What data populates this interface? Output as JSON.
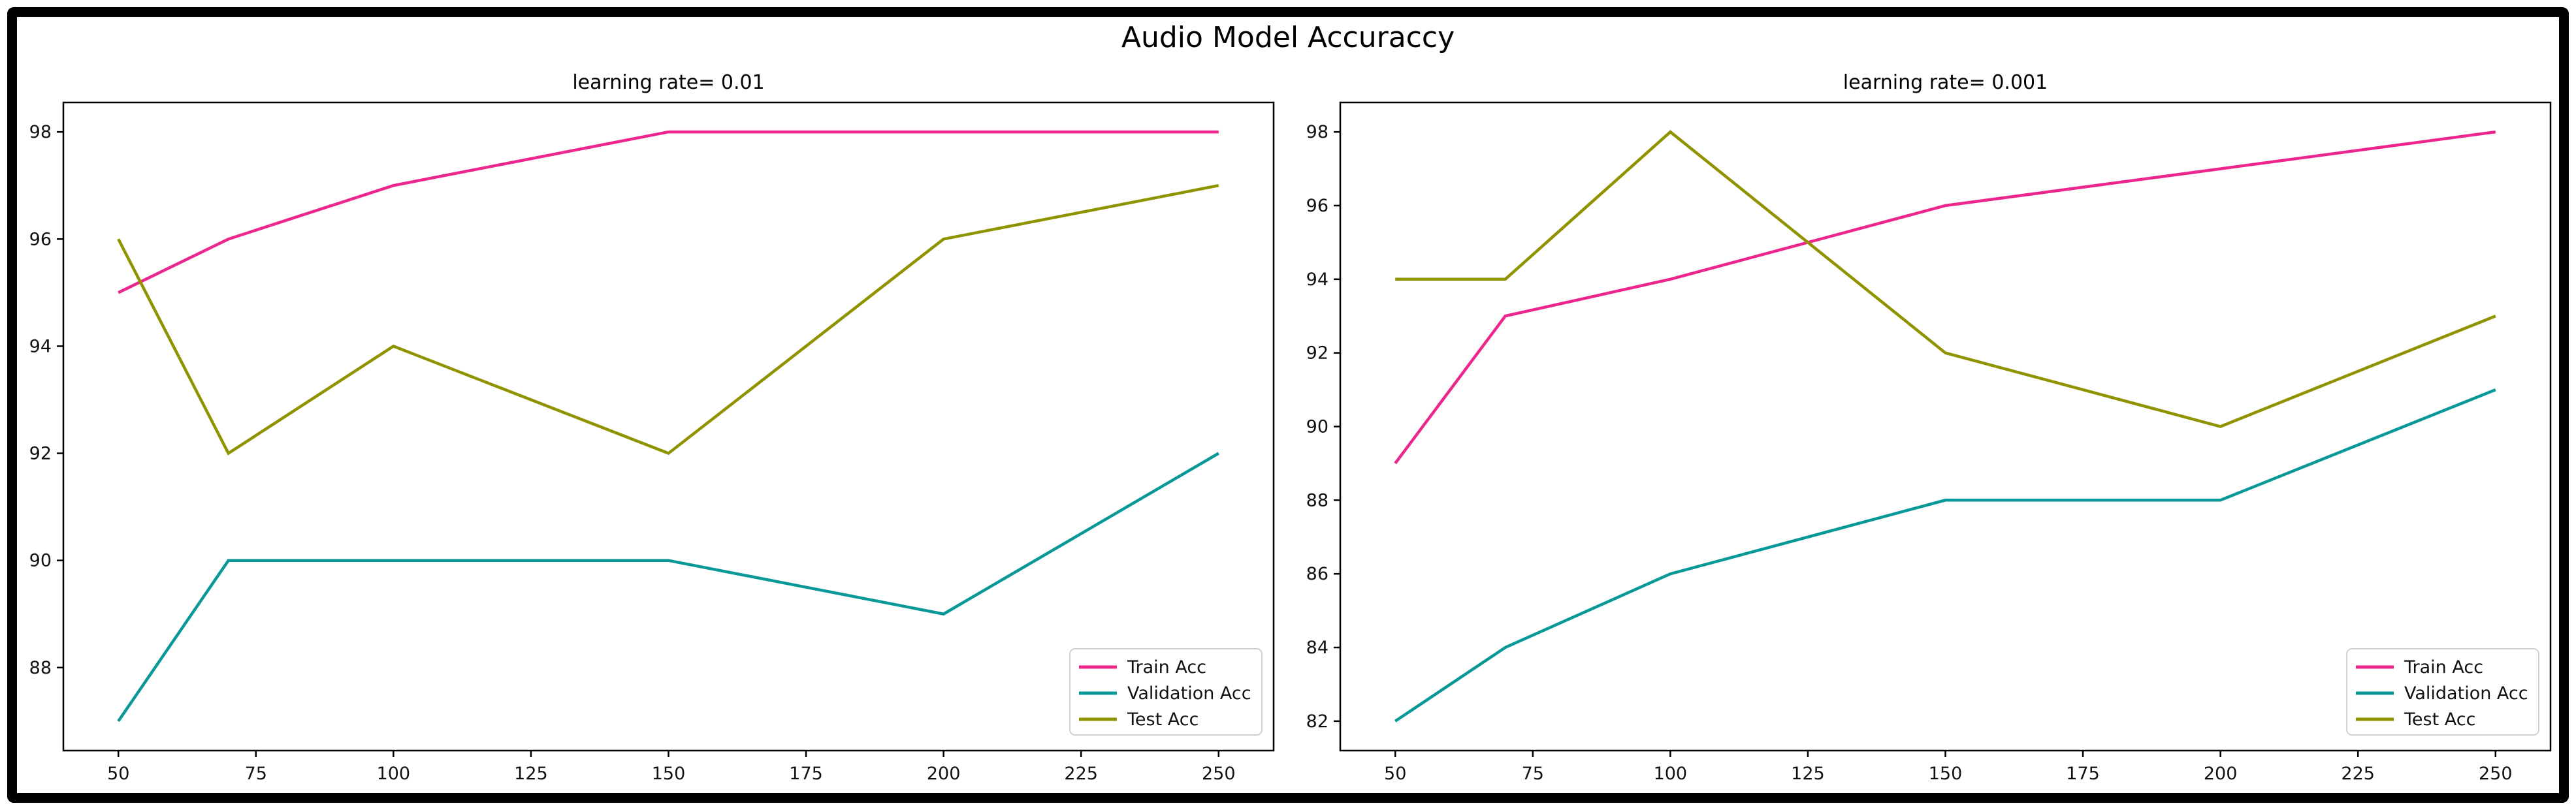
{
  "title": "Audio Model Accuraccy",
  "accent_colors": {
    "train": "#ec268d",
    "validation": "#089898",
    "test": "#909300",
    "frame": "#000000",
    "legend_border": "#cfcfcf"
  },
  "chart_data": [
    {
      "type": "line",
      "title": "learning rate= 0.01",
      "xlabel": "",
      "ylabel": "",
      "x": [
        50,
        70,
        100,
        150,
        200,
        250
      ],
      "series": [
        {
          "name": "Train Acc",
          "color": "#ec268d",
          "values": [
            95,
            96,
            97,
            98,
            98,
            98
          ]
        },
        {
          "name": "Validation Acc",
          "color": "#089898",
          "values": [
            87,
            90,
            90,
            90,
            89,
            92
          ]
        },
        {
          "name": "Test Acc",
          "color": "#909300",
          "values": [
            96,
            92,
            94,
            92,
            96,
            97
          ]
        }
      ],
      "xticks": [
        50,
        75,
        100,
        125,
        150,
        175,
        200,
        225,
        250
      ],
      "yticks": [
        88,
        90,
        92,
        94,
        96,
        98
      ],
      "xlim": [
        40,
        260
      ],
      "ylim": [
        86.45,
        98.55
      ],
      "grid": false,
      "legend_position": "lower right",
      "legend_labels": [
        "Train Acc",
        "Validation Acc",
        "Test Acc"
      ]
    },
    {
      "type": "line",
      "title": "learning rate= 0.001",
      "xlabel": "",
      "ylabel": "",
      "x": [
        50,
        70,
        100,
        150,
        200,
        250
      ],
      "series": [
        {
          "name": "Train Acc",
          "color": "#ec268d",
          "values": [
            89,
            93,
            94,
            96,
            97,
            98
          ]
        },
        {
          "name": "Validation Acc",
          "color": "#089898",
          "values": [
            82,
            84,
            86,
            88,
            88,
            91
          ]
        },
        {
          "name": "Test Acc",
          "color": "#909300",
          "values": [
            94,
            94,
            98,
            92,
            90,
            93
          ]
        }
      ],
      "xticks": [
        50,
        75,
        100,
        125,
        150,
        175,
        200,
        225,
        250
      ],
      "yticks": [
        82,
        84,
        86,
        88,
        90,
        92,
        94,
        96,
        98
      ],
      "xlim": [
        40,
        260
      ],
      "ylim": [
        81.2,
        98.8
      ],
      "grid": false,
      "legend_position": "lower right",
      "legend_labels": [
        "Train Acc",
        "Validation Acc",
        "Test Acc"
      ]
    }
  ]
}
